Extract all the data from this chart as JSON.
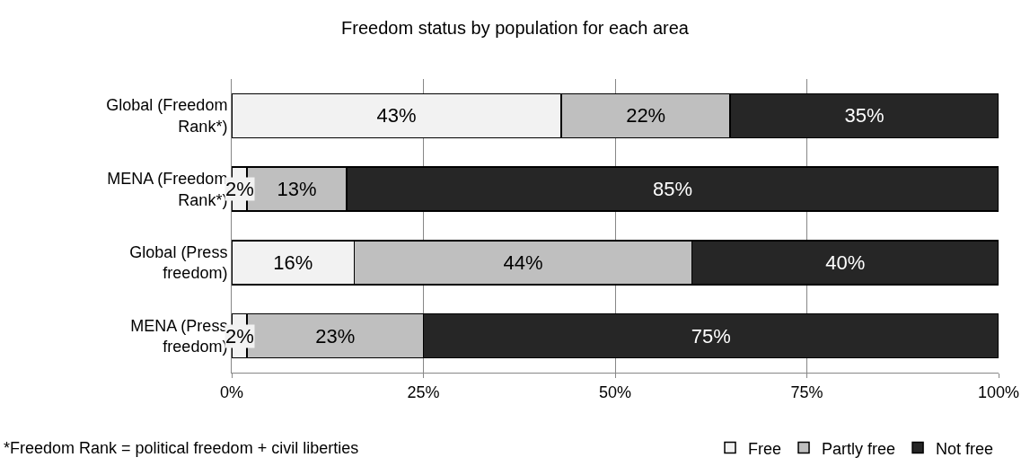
{
  "chart_data": {
    "type": "bar",
    "orientation": "horizontal",
    "stacked": true,
    "title": "Freedom status by population for each area",
    "categories": [
      "Global (Freedom Rank*)",
      "MENA (Freedom Rank*)",
      "Global (Press freedom)",
      "MENA (Press freedom)"
    ],
    "series": [
      {
        "name": "Free",
        "color": "#f2f2f2",
        "values": [
          43,
          2,
          16,
          2
        ],
        "value_labels": [
          "43%",
          "2%",
          "16%",
          "2%"
        ]
      },
      {
        "name": "Partly free",
        "color": "#bfbfbf",
        "values": [
          22,
          13,
          44,
          23
        ],
        "value_labels": [
          "22%",
          "13%",
          "44%",
          "23%"
        ]
      },
      {
        "name": "Not free",
        "color": "#262626",
        "values": [
          35,
          85,
          40,
          75
        ],
        "value_labels": [
          "35%",
          "85%",
          "40%",
          "75%"
        ]
      }
    ],
    "xlim": [
      0,
      100
    ],
    "xticks": [
      {
        "value": 0,
        "label": "0%"
      },
      {
        "value": 25,
        "label": "25%"
      },
      {
        "value": 50,
        "label": "50%"
      },
      {
        "value": 75,
        "label": "75%"
      },
      {
        "value": 100,
        "label": "100%"
      }
    ],
    "grid": "x",
    "legend": "bottom right",
    "annotations": [
      "*Freedom Rank = political freedom + civil liberties"
    ]
  }
}
